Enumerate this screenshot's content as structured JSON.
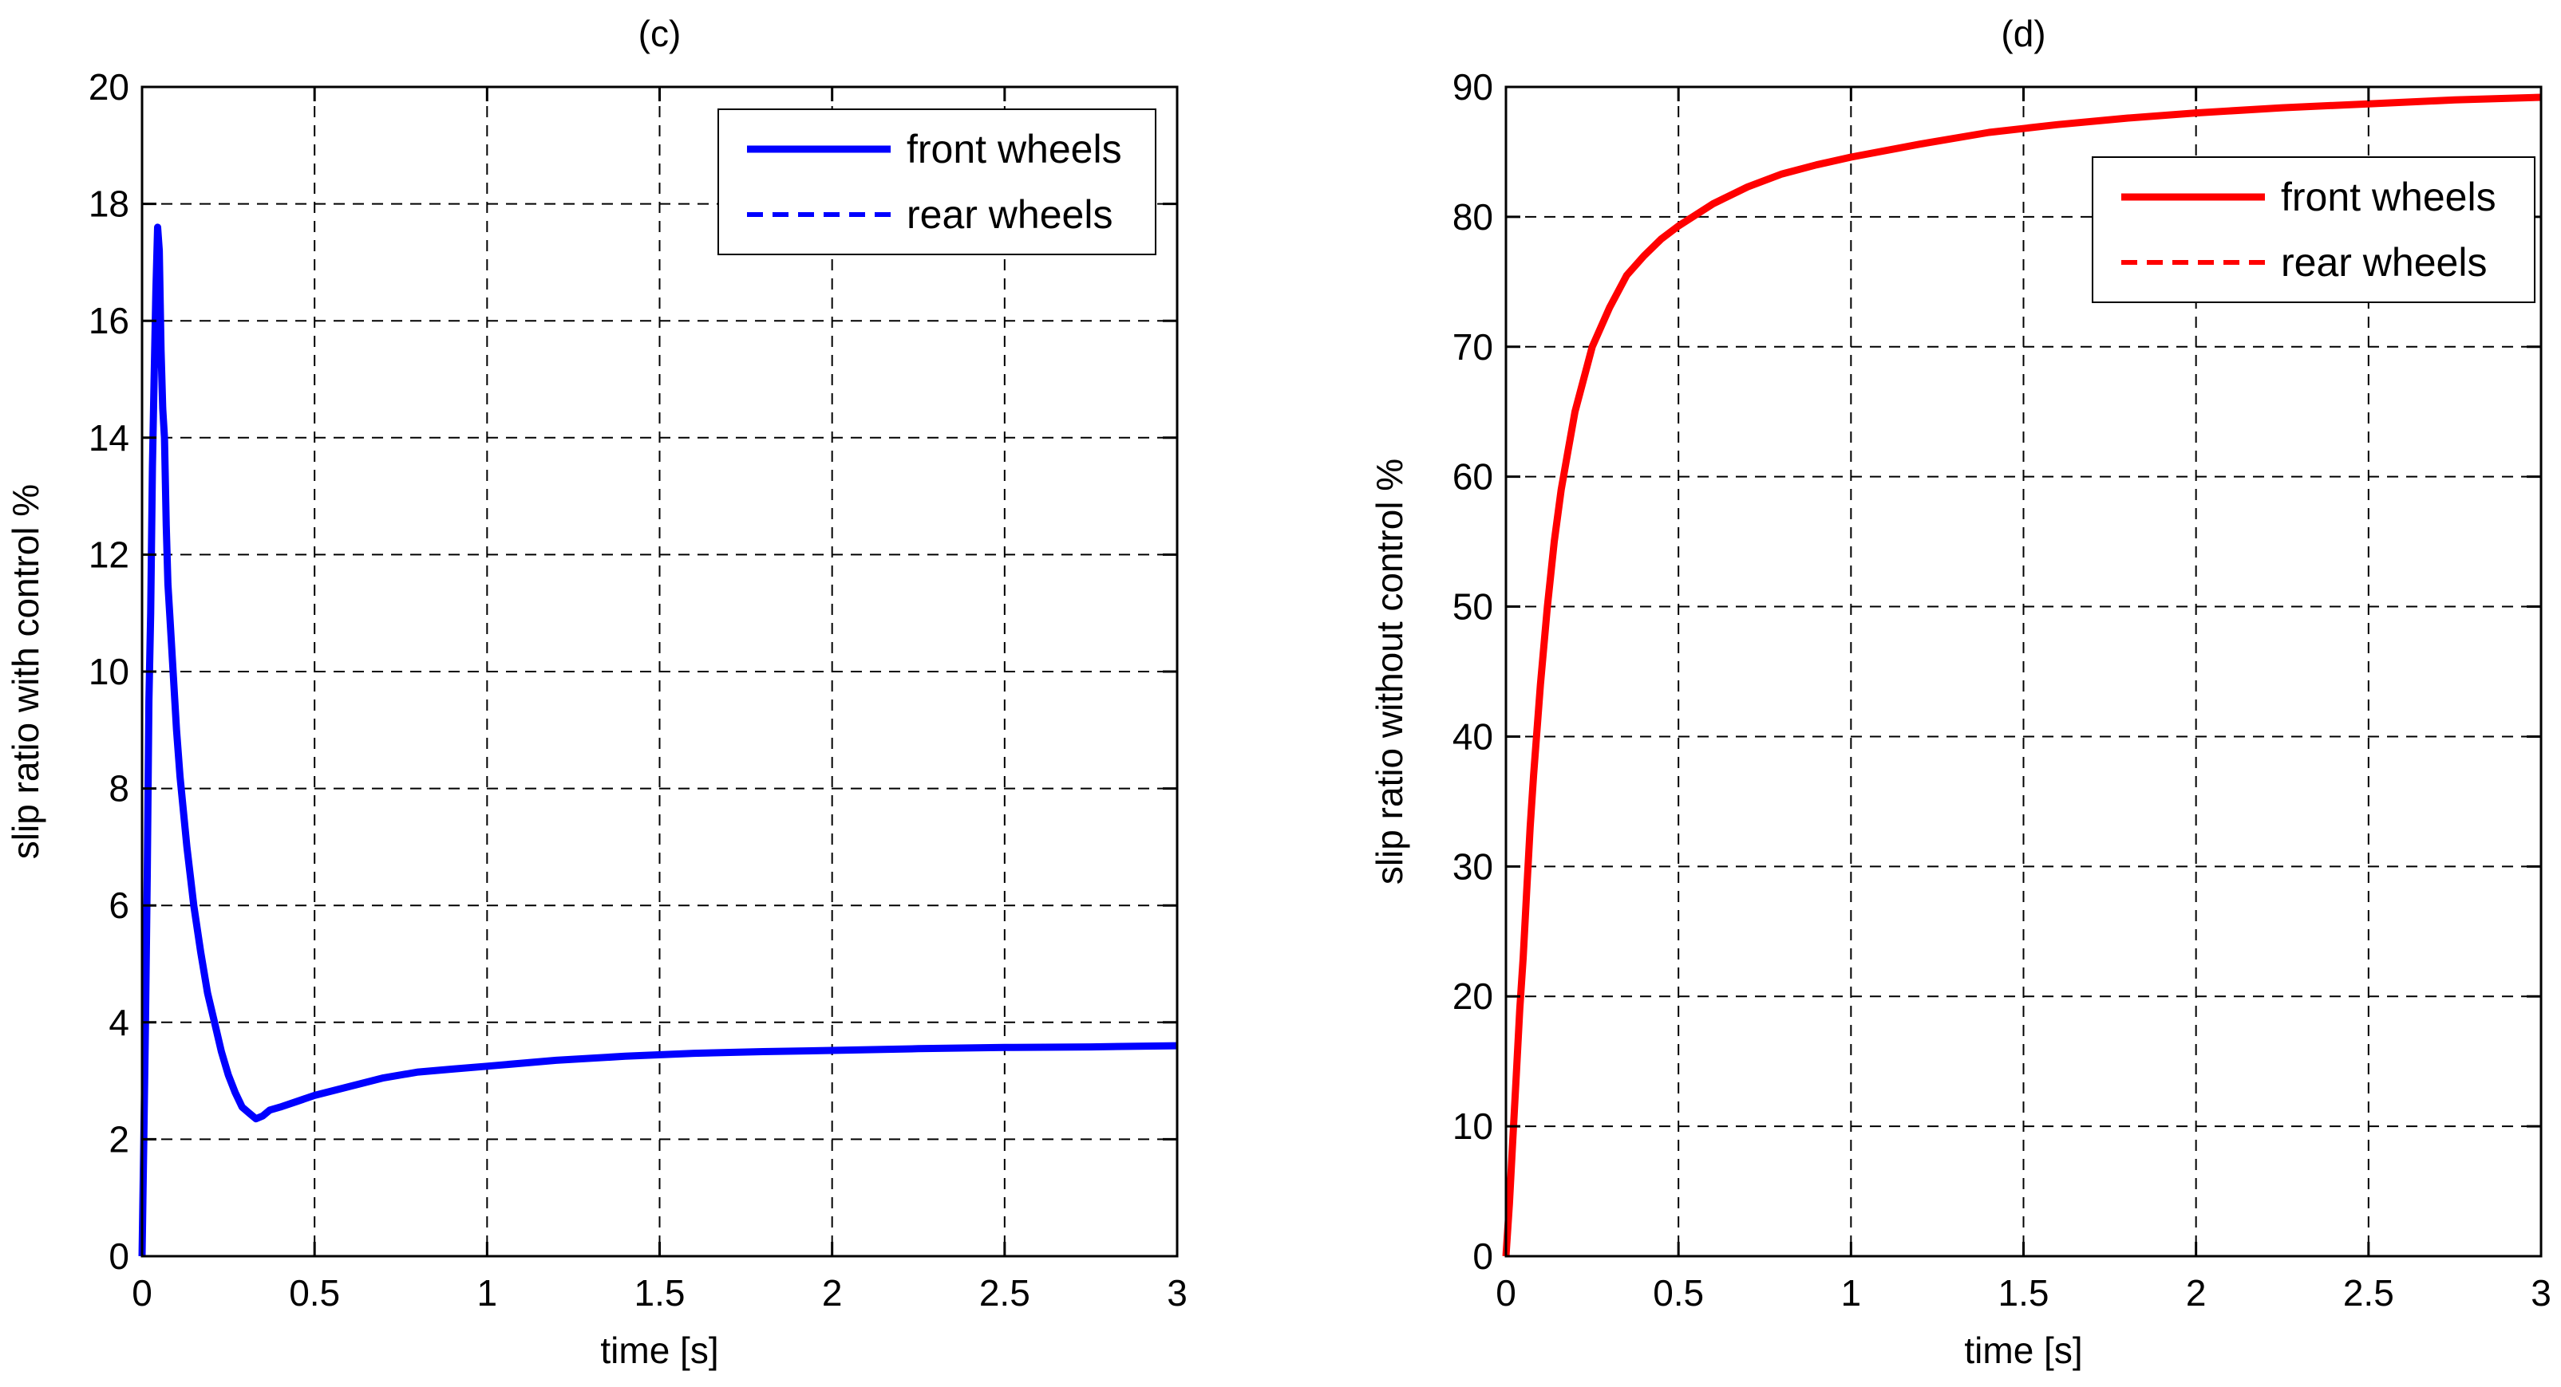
{
  "chart_data": [
    {
      "type": "line",
      "title": "(c)",
      "xlabel": "time [s]",
      "ylabel": "slip ratio with control %",
      "xlim": [
        0,
        3
      ],
      "ylim": [
        0,
        20
      ],
      "xticks": [
        0,
        0.5,
        1,
        1.5,
        2,
        2.5,
        3
      ],
      "xtick_labels": [
        "0",
        "0.5",
        "1",
        "1.5",
        "2",
        "2.5",
        "3"
      ],
      "yticks": [
        0,
        2,
        4,
        6,
        8,
        10,
        12,
        14,
        16,
        18,
        20
      ],
      "ytick_labels": [
        "0",
        "2",
        "4",
        "6",
        "8",
        "10",
        "12",
        "14",
        "16",
        "18",
        "20"
      ],
      "grid": true,
      "legend_position": "top-right",
      "color": "#0000ff",
      "series": [
        {
          "name": "front wheels",
          "style": "solid",
          "x": [
            0,
            0.005,
            0.01,
            0.015,
            0.02,
            0.025,
            0.03,
            0.035,
            0.04,
            0.045,
            0.05,
            0.055,
            0.06,
            0.065,
            0.07,
            0.075,
            0.08,
            0.09,
            0.1,
            0.11,
            0.12,
            0.13,
            0.14,
            0.15,
            0.17,
            0.19,
            0.21,
            0.23,
            0.25,
            0.27,
            0.29,
            0.31,
            0.33,
            0.35,
            0.37,
            0.4,
            0.45,
            0.5,
            0.6,
            0.7,
            0.8,
            0.9,
            1.0,
            1.2,
            1.4,
            1.6,
            1.8,
            2.0,
            2.25,
            2.5,
            2.75,
            3.0
          ],
          "y": [
            0,
            2.0,
            4.0,
            6.5,
            9.5,
            11.0,
            13.5,
            15.0,
            16.5,
            17.6,
            17.2,
            15.5,
            14.5,
            14.0,
            12.5,
            11.5,
            11.0,
            10.0,
            9.0,
            8.2,
            7.6,
            7.0,
            6.5,
            6.0,
            5.2,
            4.5,
            4.0,
            3.5,
            3.1,
            2.8,
            2.55,
            2.45,
            2.35,
            2.4,
            2.5,
            2.55,
            2.65,
            2.75,
            2.9,
            3.05,
            3.15,
            3.2,
            3.25,
            3.35,
            3.42,
            3.47,
            3.5,
            3.52,
            3.55,
            3.57,
            3.58,
            3.6
          ]
        },
        {
          "name": "rear wheels",
          "style": "dashed",
          "x": [
            0,
            0.005,
            0.01,
            0.015,
            0.02,
            0.025,
            0.03,
            0.035,
            0.04,
            0.045,
            0.05,
            0.055,
            0.06,
            0.065,
            0.07,
            0.075,
            0.08,
            0.09,
            0.1,
            0.11,
            0.12,
            0.13,
            0.14,
            0.15,
            0.17,
            0.19,
            0.21,
            0.23,
            0.25,
            0.27,
            0.29,
            0.31,
            0.33,
            0.35,
            0.37,
            0.4,
            0.45,
            0.5,
            0.6,
            0.7,
            0.8,
            0.9,
            1.0,
            1.2,
            1.4,
            1.6,
            1.8,
            2.0,
            2.25,
            2.5,
            2.75,
            3.0
          ],
          "y": [
            0,
            2.0,
            4.0,
            6.5,
            9.5,
            11.0,
            13.5,
            15.0,
            16.5,
            17.6,
            17.2,
            15.5,
            14.5,
            14.0,
            12.5,
            11.5,
            11.0,
            10.0,
            9.0,
            8.2,
            7.6,
            7.0,
            6.5,
            6.0,
            5.2,
            4.5,
            4.0,
            3.5,
            3.1,
            2.8,
            2.55,
            2.45,
            2.35,
            2.4,
            2.5,
            2.55,
            2.65,
            2.75,
            2.9,
            3.05,
            3.15,
            3.2,
            3.25,
            3.35,
            3.42,
            3.47,
            3.5,
            3.52,
            3.55,
            3.57,
            3.58,
            3.6
          ]
        }
      ]
    },
    {
      "type": "line",
      "title": "(d)",
      "xlabel": "time [s]",
      "ylabel": "slip ratio without control %",
      "xlim": [
        0,
        3
      ],
      "ylim": [
        0,
        90
      ],
      "xticks": [
        0,
        0.5,
        1,
        1.5,
        2,
        2.5,
        3
      ],
      "xtick_labels": [
        "0",
        "0.5",
        "1",
        "1.5",
        "2",
        "2.5",
        "3"
      ],
      "yticks": [
        0,
        10,
        20,
        30,
        40,
        50,
        60,
        70,
        80,
        90
      ],
      "ytick_labels": [
        "0",
        "10",
        "20",
        "30",
        "40",
        "50",
        "60",
        "70",
        "80",
        "90"
      ],
      "grid": true,
      "legend_position": "top-right",
      "color": "#ff0000",
      "series": [
        {
          "name": "front wheels",
          "style": "solid",
          "x": [
            0,
            0.01,
            0.02,
            0.03,
            0.04,
            0.05,
            0.06,
            0.07,
            0.08,
            0.1,
            0.12,
            0.14,
            0.16,
            0.18,
            0.2,
            0.25,
            0.3,
            0.35,
            0.4,
            0.45,
            0.5,
            0.6,
            0.7,
            0.8,
            0.9,
            1.0,
            1.2,
            1.4,
            1.6,
            1.8,
            2.0,
            2.25,
            2.5,
            2.75,
            3.0
          ],
          "y": [
            0,
            4,
            9,
            14,
            19,
            23,
            28,
            33,
            37,
            44,
            50,
            55,
            59,
            62,
            65,
            70,
            73,
            75.5,
            77,
            78.3,
            79.3,
            81,
            82.3,
            83.3,
            84,
            84.6,
            85.6,
            86.5,
            87.1,
            87.6,
            88,
            88.4,
            88.7,
            89,
            89.2
          ]
        },
        {
          "name": "rear wheels",
          "style": "dashed",
          "x": [
            0,
            0.01,
            0.02,
            0.03,
            0.04,
            0.05,
            0.06,
            0.07,
            0.08,
            0.1,
            0.12,
            0.14,
            0.16,
            0.18,
            0.2,
            0.25,
            0.3,
            0.35,
            0.4,
            0.45,
            0.5,
            0.6,
            0.7,
            0.8,
            0.9,
            1.0,
            1.2,
            1.4,
            1.6,
            1.8,
            2.0,
            2.25,
            2.5,
            2.75,
            3.0
          ],
          "y": [
            0,
            4,
            9,
            14,
            19,
            23,
            28,
            33,
            37,
            44,
            50,
            55,
            59,
            62,
            65,
            70,
            73,
            75.5,
            77,
            78.3,
            79.3,
            81,
            82.3,
            83.3,
            84,
            84.6,
            85.6,
            86.5,
            87.1,
            87.6,
            88,
            88.4,
            88.7,
            89,
            89.2
          ]
        }
      ]
    }
  ]
}
